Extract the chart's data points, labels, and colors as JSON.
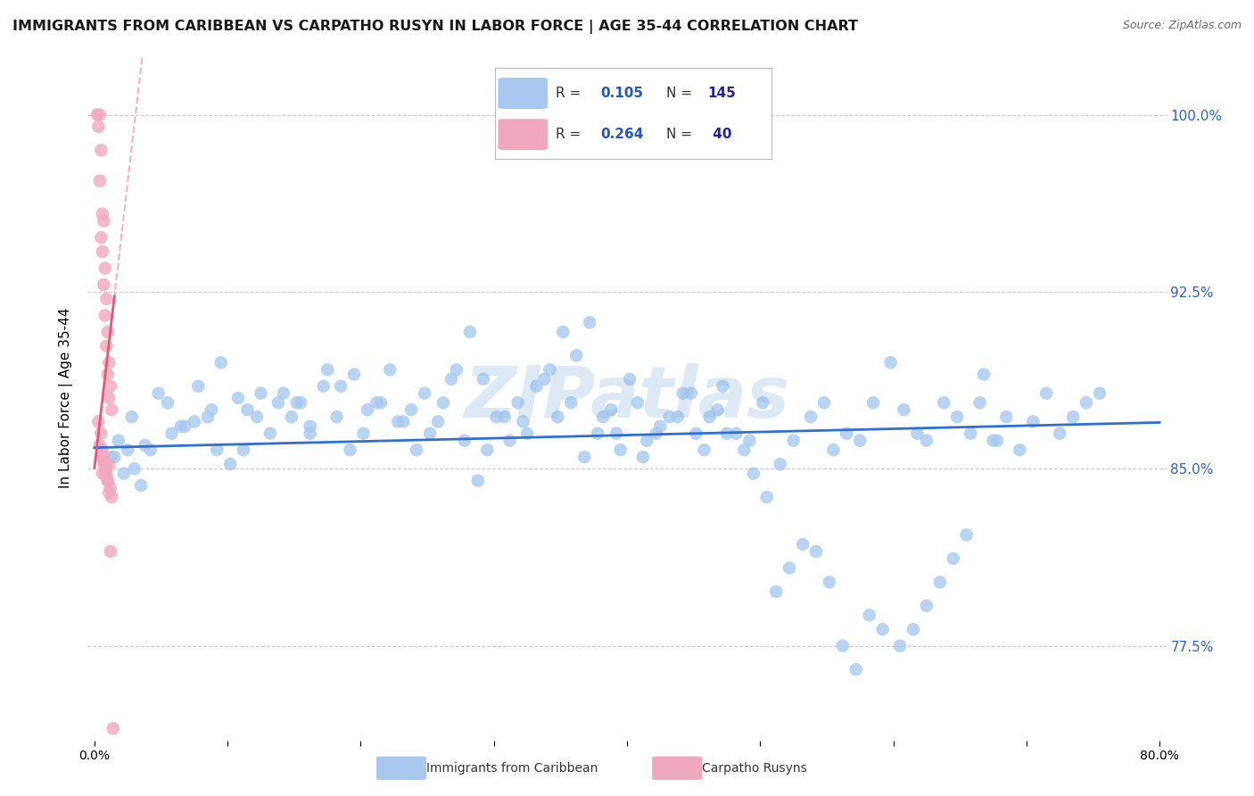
{
  "title": "IMMIGRANTS FROM CARIBBEAN VS CARPATHO RUSYN IN LABOR FORCE | AGE 35-44 CORRELATION CHART",
  "source": "Source: ZipAtlas.com",
  "ylabel": "In Labor Force | Age 35-44",
  "xlim": [
    -0.005,
    0.805
  ],
  "ylim": [
    0.735,
    1.025
  ],
  "ytick_pos": [
    0.775,
    0.85,
    0.925,
    1.0
  ],
  "ytick_labels": [
    "77.5%",
    "85.0%",
    "92.5%",
    "100.0%"
  ],
  "xtick_pos": [
    0.0,
    0.1,
    0.2,
    0.3,
    0.4,
    0.5,
    0.6,
    0.7,
    0.8
  ],
  "xtick_labels": [
    "0.0%",
    "",
    "",
    "",
    "",
    "",
    "",
    "",
    "80.0%"
  ],
  "caribbean_R": 0.105,
  "caribbean_N": 145,
  "rusyn_R": 0.264,
  "rusyn_N": 40,
  "caribbean_color": "#a8c8f0",
  "rusyn_color": "#f0a8be",
  "caribbean_line_color": "#3070d0",
  "rusyn_line_color": "#e05878",
  "background_color": "#ffffff",
  "grid_color": "#cccccc",
  "watermark": "ZIPatlas",
  "right_tick_color": "#3060c0",
  "caribbean_x": [
    0.018,
    0.025,
    0.03,
    0.012,
    0.022,
    0.035,
    0.042,
    0.058,
    0.065,
    0.075,
    0.088,
    0.095,
    0.108,
    0.115,
    0.125,
    0.138,
    0.148,
    0.155,
    0.162,
    0.175,
    0.185,
    0.195,
    0.205,
    0.215,
    0.228,
    0.238,
    0.248,
    0.258,
    0.268,
    0.278,
    0.288,
    0.295,
    0.308,
    0.318,
    0.325,
    0.338,
    0.348,
    0.358,
    0.368,
    0.378,
    0.388,
    0.395,
    0.408,
    0.415,
    0.425,
    0.438,
    0.448,
    0.458,
    0.468,
    0.475,
    0.488,
    0.495,
    0.505,
    0.515,
    0.525,
    0.538,
    0.548,
    0.555,
    0.565,
    0.575,
    0.585,
    0.598,
    0.608,
    0.618,
    0.625,
    0.638,
    0.648,
    0.658,
    0.668,
    0.678,
    0.015,
    0.028,
    0.038,
    0.048,
    0.055,
    0.068,
    0.078,
    0.085,
    0.092,
    0.102,
    0.112,
    0.122,
    0.132,
    0.142,
    0.152,
    0.162,
    0.172,
    0.182,
    0.192,
    0.202,
    0.212,
    0.222,
    0.232,
    0.242,
    0.252,
    0.262,
    0.272,
    0.282,
    0.292,
    0.302,
    0.312,
    0.322,
    0.332,
    0.342,
    0.352,
    0.362,
    0.372,
    0.382,
    0.392,
    0.402,
    0.412,
    0.422,
    0.432,
    0.442,
    0.452,
    0.462,
    0.472,
    0.482,
    0.492,
    0.502,
    0.512,
    0.522,
    0.532,
    0.542,
    0.552,
    0.562,
    0.572,
    0.582,
    0.592,
    0.605,
    0.615,
    0.625,
    0.635,
    0.645,
    0.655,
    0.665,
    0.675,
    0.685,
    0.695,
    0.705,
    0.715,
    0.725,
    0.735,
    0.745,
    0.755
  ],
  "caribbean_y": [
    0.862,
    0.858,
    0.85,
    0.855,
    0.848,
    0.843,
    0.858,
    0.865,
    0.868,
    0.87,
    0.875,
    0.895,
    0.88,
    0.875,
    0.882,
    0.878,
    0.872,
    0.878,
    0.865,
    0.892,
    0.885,
    0.89,
    0.875,
    0.878,
    0.87,
    0.875,
    0.882,
    0.87,
    0.888,
    0.862,
    0.845,
    0.858,
    0.872,
    0.878,
    0.865,
    0.888,
    0.872,
    0.878,
    0.855,
    0.865,
    0.875,
    0.858,
    0.878,
    0.862,
    0.868,
    0.872,
    0.882,
    0.858,
    0.875,
    0.865,
    0.858,
    0.848,
    0.838,
    0.852,
    0.862,
    0.872,
    0.878,
    0.858,
    0.865,
    0.862,
    0.878,
    0.895,
    0.875,
    0.865,
    0.862,
    0.878,
    0.872,
    0.865,
    0.89,
    0.862,
    0.855,
    0.872,
    0.86,
    0.882,
    0.878,
    0.868,
    0.885,
    0.872,
    0.858,
    0.852,
    0.858,
    0.872,
    0.865,
    0.882,
    0.878,
    0.868,
    0.885,
    0.872,
    0.858,
    0.865,
    0.878,
    0.892,
    0.87,
    0.858,
    0.865,
    0.878,
    0.892,
    0.908,
    0.888,
    0.872,
    0.862,
    0.87,
    0.885,
    0.892,
    0.908,
    0.898,
    0.912,
    0.872,
    0.865,
    0.888,
    0.855,
    0.865,
    0.872,
    0.882,
    0.865,
    0.872,
    0.885,
    0.865,
    0.862,
    0.878,
    0.798,
    0.808,
    0.818,
    0.815,
    0.802,
    0.775,
    0.765,
    0.788,
    0.782,
    0.775,
    0.782,
    0.792,
    0.802,
    0.812,
    0.822,
    0.878,
    0.862,
    0.872,
    0.858,
    0.87,
    0.882,
    0.865,
    0.872,
    0.878,
    0.882
  ],
  "rusyn_x": [
    0.002,
    0.004,
    0.003,
    0.005,
    0.004,
    0.006,
    0.005,
    0.007,
    0.006,
    0.008,
    0.007,
    0.009,
    0.008,
    0.01,
    0.009,
    0.011,
    0.01,
    0.012,
    0.011,
    0.013,
    0.003,
    0.005,
    0.004,
    0.006,
    0.005,
    0.007,
    0.006,
    0.008,
    0.007,
    0.009,
    0.008,
    0.01,
    0.009,
    0.011,
    0.01,
    0.012,
    0.011,
    0.013,
    0.012,
    0.014
  ],
  "rusyn_y": [
    1.0,
    1.0,
    0.995,
    0.985,
    0.972,
    0.958,
    0.948,
    0.955,
    0.942,
    0.935,
    0.928,
    0.922,
    0.915,
    0.908,
    0.902,
    0.895,
    0.89,
    0.885,
    0.88,
    0.875,
    0.87,
    0.865,
    0.86,
    0.858,
    0.855,
    0.852,
    0.848,
    0.852,
    0.855,
    0.85,
    0.848,
    0.845,
    0.848,
    0.852,
    0.845,
    0.842,
    0.84,
    0.838,
    0.815,
    0.74
  ]
}
